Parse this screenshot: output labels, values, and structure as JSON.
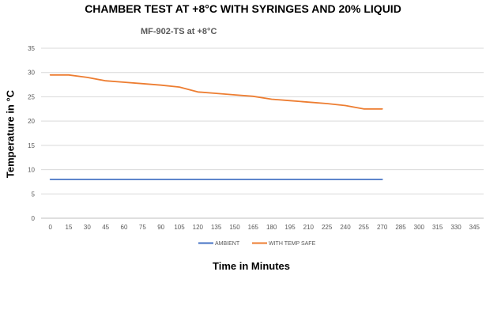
{
  "chart_data": {
    "type": "line",
    "title": "CHAMBER TEST AT +8°C WITH SYRINGES AND 20% LIQUID",
    "subtitle": "MF-902-TS at +8°C",
    "xlabel": "Time in Minutes",
    "ylabel": "Temperature in °C",
    "categories": [
      "0",
      "15",
      "30",
      "45",
      "60",
      "75",
      "90",
      "105",
      "120",
      "135",
      "150",
      "165",
      "180",
      "195",
      "210",
      "225",
      "240",
      "255",
      "270",
      "285",
      "300",
      "315",
      "330",
      "345"
    ],
    "ylim": [
      0,
      35
    ],
    "yticks": [
      "0",
      "5",
      "10",
      "15",
      "20",
      "25",
      "30",
      "35"
    ],
    "grid": true,
    "legend_position": "bottom",
    "series": [
      {
        "name": "AMBIENT",
        "color": "#4472C4",
        "values": [
          8,
          8,
          8,
          8,
          8,
          8,
          8,
          8,
          8,
          8,
          8,
          8,
          8,
          8,
          8,
          8,
          8,
          8,
          8,
          null,
          null,
          null,
          null,
          null
        ]
      },
      {
        "name": "WITH TEMP SAFE",
        "color": "#ED7D31",
        "values": [
          29.5,
          29.5,
          29,
          28.3,
          28,
          27.7,
          27.4,
          27,
          26,
          25.7,
          25.4,
          25.1,
          24.5,
          24.2,
          23.9,
          23.6,
          23.2,
          22.5,
          22.5,
          null,
          null,
          null,
          null,
          null
        ]
      }
    ]
  }
}
